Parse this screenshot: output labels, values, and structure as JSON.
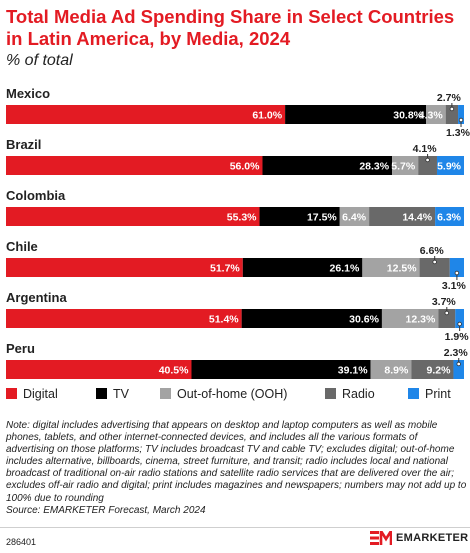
{
  "title": "Total Media Ad Spending Share in Select Countries in Latin America, by Media, 2024",
  "subtitle": "% of total",
  "note": "Note: digital includes advertising that appears on desktop and laptop computers as well as mobile phones, tablets, and other internet-connected devices, and includes all the various formats of advertising on those platforms; TV includes broadcast TV and cable TV; excludes digital; out-of-home includes alternative, billboards, cinema, street furniture, and transit; radio includes local and national broadcast of traditional on-air radio stations and satellite radio services that are delivered over the air; excludes off-air radio and digital; print includes magazines and newspapers; numbers may not add up to 100% due to rounding",
  "source": "Source: EMARKETER Forecast, March 2024",
  "chart_id": "286401",
  "brand": "EMARKETER",
  "colors": {
    "Digital": "#e31b23",
    "TV": "#000000",
    "Out-of-home (OOH)": "#a3a3a3",
    "Radio": "#696969",
    "Print": "#1f86e8"
  },
  "chart_data": {
    "type": "bar",
    "orientation": "horizontal-stacked",
    "categories": [
      "Mexico",
      "Brazil",
      "Colombia",
      "Chile",
      "Argentina",
      "Peru"
    ],
    "series": [
      {
        "name": "Digital",
        "values": [
          61.0,
          56.0,
          55.3,
          51.7,
          51.4,
          40.5
        ]
      },
      {
        "name": "TV",
        "values": [
          30.8,
          28.3,
          17.5,
          26.1,
          30.6,
          39.1
        ]
      },
      {
        "name": "Out-of-home (OOH)",
        "values": [
          4.3,
          5.7,
          6.4,
          12.5,
          12.3,
          8.9
        ]
      },
      {
        "name": "Radio",
        "values": [
          2.7,
          4.1,
          14.4,
          6.6,
          3.7,
          9.2
        ]
      },
      {
        "name": "Print",
        "values": [
          1.3,
          5.9,
          6.3,
          3.1,
          1.9,
          2.3
        ]
      }
    ],
    "labels": [
      [
        "61.0%",
        "30.8%",
        "4.3%",
        "2.7%",
        "1.3%"
      ],
      [
        "56.0%",
        "28.3%",
        "5.7%",
        "4.1%",
        "5.9%"
      ],
      [
        "55.3%",
        "17.5%",
        "6.4%",
        "14.4%",
        "6.3%"
      ],
      [
        "51.7%",
        "26.1%",
        "12.5%",
        "6.6%",
        "3.1%"
      ],
      [
        "51.4%",
        "30.6%",
        "12.3%",
        "3.7%",
        "1.9%"
      ],
      [
        "40.5%",
        "39.1%",
        "8.9%",
        "9.2%",
        "2.3%"
      ]
    ],
    "label_placement": [
      [
        "in",
        "in",
        "in",
        "above",
        "below"
      ],
      [
        "in",
        "in",
        "in",
        "above",
        "in"
      ],
      [
        "in",
        "in",
        "in",
        "in",
        "in"
      ],
      [
        "in",
        "in",
        "in",
        "above",
        "below"
      ],
      [
        "in",
        "in",
        "in",
        "above",
        "below"
      ],
      [
        "in",
        "in",
        "in",
        "in",
        "above"
      ]
    ],
    "legend": [
      "Digital",
      "TV",
      "Out-of-home (OOH)",
      "Radio",
      "Print"
    ],
    "legend_position": "bottom",
    "xlim": [
      0,
      100
    ]
  }
}
